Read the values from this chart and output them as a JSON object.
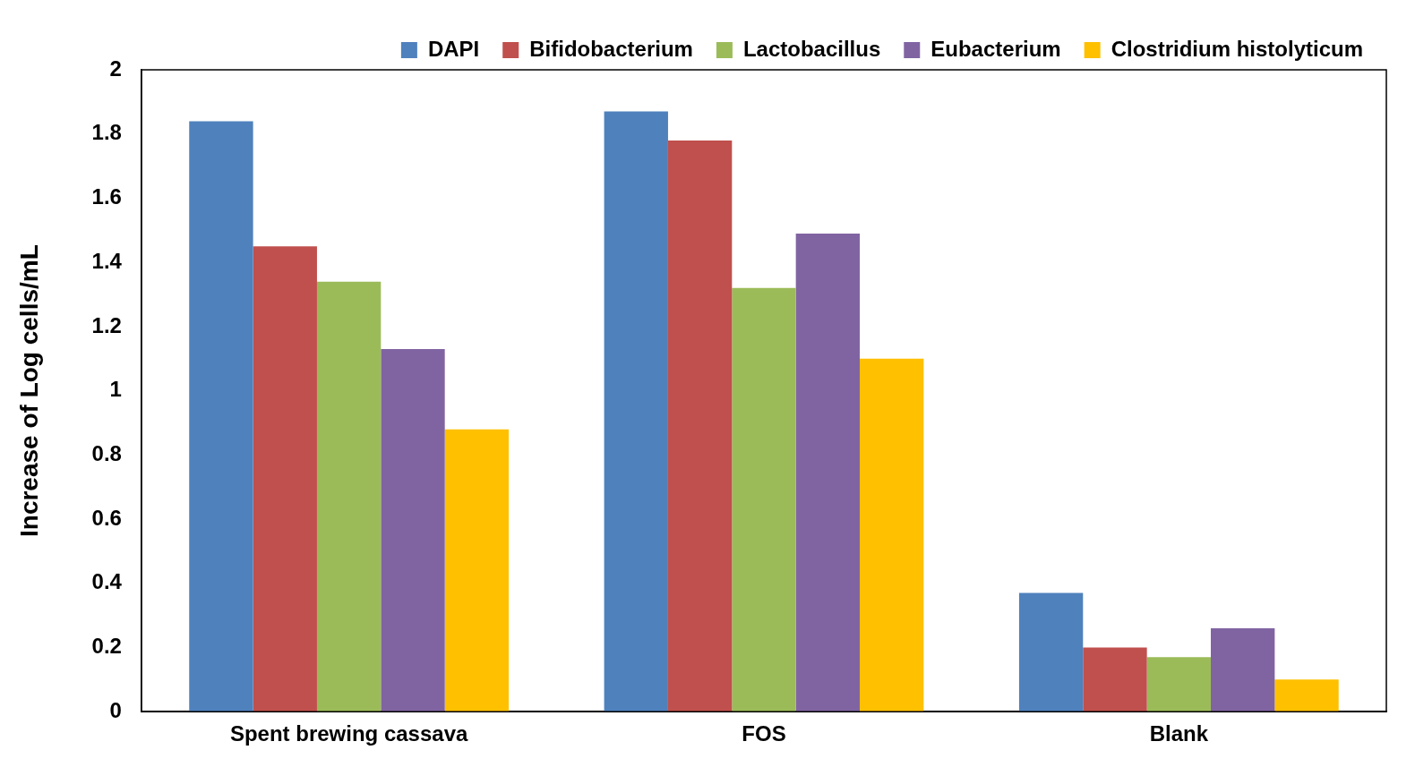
{
  "chart_data": {
    "type": "bar",
    "ylabel": "Increase of Log cells/mL",
    "categories": [
      "Spent brewing cassava",
      "FOS",
      "Blank"
    ],
    "series": [
      {
        "name": "DAPI",
        "color": "#4f81bd",
        "values": [
          1.84,
          1.87,
          0.37
        ]
      },
      {
        "name": "Bifidobacterium",
        "color": "#c0504d",
        "values": [
          1.45,
          1.78,
          0.2
        ]
      },
      {
        "name": "Lactobacillus",
        "color": "#9bbb59",
        "values": [
          1.34,
          1.32,
          0.17
        ]
      },
      {
        "name": "Eubacterium",
        "color": "#8064a2",
        "values": [
          1.13,
          1.49,
          0.26
        ]
      },
      {
        "name": "Clostridium histolyticum",
        "color": "#ffc000",
        "values": [
          0.88,
          1.1,
          0.1
        ]
      }
    ],
    "ylim": [
      0,
      2
    ],
    "yticks": [
      0,
      0.2,
      0.4,
      0.6,
      0.8,
      1,
      1.2,
      1.4,
      1.6,
      1.8,
      2
    ],
    "grid": false,
    "legend": "top right"
  }
}
